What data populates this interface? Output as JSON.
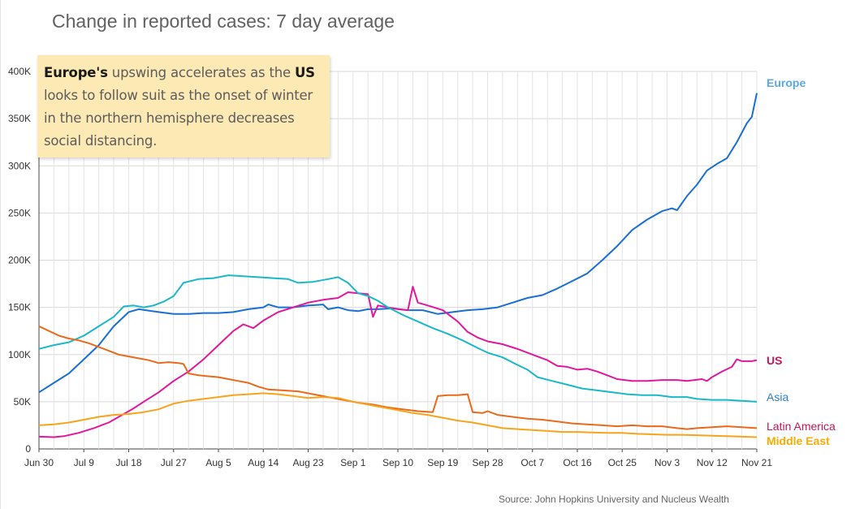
{
  "title": "Change in reported cases: 7 day average",
  "annotation": {
    "bold1": "Europe's",
    "text1": " upswing accelerates as the ",
    "bold2": "US",
    "text2": " looks to follow suit as the onset of winter in the northern hemisphere decreases social distancing."
  },
  "source": "Source: John Hopkins University and Nucleus Wealth",
  "chart_data": {
    "type": "line",
    "title": "Change in reported cases: 7 day average",
    "xlabel": "",
    "ylabel": "",
    "x_ticks": [
      "Jun 30",
      "Jul 9",
      "Jul 18",
      "Jul 27",
      "Aug 5",
      "Aug 14",
      "Aug 23",
      "Sep 1",
      "Sep 10",
      "Sep 19",
      "Sep 28",
      "Oct 7",
      "Oct 16",
      "Oct 25",
      "Nov 3",
      "Nov 12",
      "Nov 21"
    ],
    "y_ticks": [
      "0",
      "50K",
      "100K",
      "150K",
      "200K",
      "250K",
      "300K",
      "350K",
      "400K"
    ],
    "ylim": [
      0,
      400000
    ],
    "x_range_days": [
      0,
      144
    ],
    "grid": true,
    "legend": "end-of-line labels",
    "series": [
      {
        "name": "Europe",
        "color": "#1a6fd3",
        "label_color": "#5aa9e6",
        "points": [
          [
            0,
            60000
          ],
          [
            3,
            70000
          ],
          [
            6,
            80000
          ],
          [
            9,
            95000
          ],
          [
            12,
            110000
          ],
          [
            15,
            130000
          ],
          [
            18,
            145000
          ],
          [
            20,
            148000
          ],
          [
            24,
            145000
          ],
          [
            27,
            143000
          ],
          [
            30,
            143000
          ],
          [
            33,
            144000
          ],
          [
            36,
            144000
          ],
          [
            39,
            145000
          ],
          [
            42,
            148000
          ],
          [
            45,
            150000
          ],
          [
            46,
            153000
          ],
          [
            48,
            150000
          ],
          [
            51,
            150000
          ],
          [
            54,
            152000
          ],
          [
            57,
            153000
          ],
          [
            58,
            148000
          ],
          [
            60,
            150000
          ],
          [
            62,
            147000
          ],
          [
            64,
            146000
          ],
          [
            66,
            148000
          ],
          [
            68,
            148000
          ],
          [
            71,
            149000
          ],
          [
            74,
            147000
          ],
          [
            77,
            147000
          ],
          [
            80,
            143000
          ],
          [
            83,
            145000
          ],
          [
            86,
            147000
          ],
          [
            89,
            148000
          ],
          [
            92,
            150000
          ],
          [
            95,
            155000
          ],
          [
            98,
            160000
          ],
          [
            101,
            163000
          ],
          [
            104,
            170000
          ],
          [
            107,
            178000
          ],
          [
            110,
            186000
          ],
          [
            113,
            200000
          ],
          [
            116,
            215000
          ],
          [
            119,
            232000
          ],
          [
            122,
            243000
          ],
          [
            125,
            252000
          ],
          [
            127,
            255000
          ],
          [
            128,
            253000
          ],
          [
            130,
            268000
          ],
          [
            132,
            280000
          ],
          [
            134,
            295000
          ],
          [
            136,
            302000
          ],
          [
            138,
            308000
          ],
          [
            140,
            325000
          ],
          [
            142,
            345000
          ],
          [
            143,
            352000
          ],
          [
            144,
            377000
          ]
        ]
      },
      {
        "name": "US",
        "color": "#e0189c",
        "label_color": "#c2185b",
        "points": [
          [
            0,
            13000
          ],
          [
            3,
            12500
          ],
          [
            5,
            13500
          ],
          [
            8,
            17000
          ],
          [
            11,
            22000
          ],
          [
            14,
            28000
          ],
          [
            17,
            37000
          ],
          [
            19,
            43000
          ],
          [
            21,
            50000
          ],
          [
            24,
            60000
          ],
          [
            27,
            72000
          ],
          [
            30,
            82000
          ],
          [
            33,
            95000
          ],
          [
            36,
            110000
          ],
          [
            39,
            125000
          ],
          [
            41,
            132000
          ],
          [
            43,
            128000
          ],
          [
            45,
            136000
          ],
          [
            48,
            145000
          ],
          [
            51,
            150000
          ],
          [
            54,
            155000
          ],
          [
            57,
            158000
          ],
          [
            60,
            160000
          ],
          [
            62,
            166000
          ],
          [
            64,
            165000
          ],
          [
            66,
            164000
          ],
          [
            67,
            140000
          ],
          [
            68,
            152000
          ],
          [
            70,
            150000
          ],
          [
            72,
            148000
          ],
          [
            74,
            147000
          ],
          [
            75,
            172000
          ],
          [
            76,
            155000
          ],
          [
            78,
            152000
          ],
          [
            81,
            147000
          ],
          [
            84,
            135000
          ],
          [
            86,
            124000
          ],
          [
            88,
            118000
          ],
          [
            90,
            114000
          ],
          [
            93,
            111000
          ],
          [
            96,
            106000
          ],
          [
            99,
            100000
          ],
          [
            102,
            94000
          ],
          [
            104,
            88000
          ],
          [
            106,
            87000
          ],
          [
            108,
            84000
          ],
          [
            110,
            85000
          ],
          [
            112,
            82000
          ],
          [
            114,
            78000
          ],
          [
            116,
            74000
          ],
          [
            119,
            72000
          ],
          [
            122,
            72000
          ],
          [
            125,
            73000
          ],
          [
            128,
            73000
          ],
          [
            130,
            72000
          ],
          [
            133,
            74000
          ],
          [
            134,
            72000
          ],
          [
            135,
            76000
          ],
          [
            137,
            82000
          ],
          [
            139,
            87000
          ],
          [
            140,
            95000
          ],
          [
            141,
            93000
          ],
          [
            143,
            93000
          ],
          [
            144,
            94000
          ]
        ]
      },
      {
        "name": "Asia",
        "color": "#1bb8c8",
        "label_color": "#2e7fc4",
        "points": [
          [
            0,
            106000
          ],
          [
            3,
            110000
          ],
          [
            6,
            113000
          ],
          [
            9,
            120000
          ],
          [
            12,
            130000
          ],
          [
            15,
            140000
          ],
          [
            17,
            151000
          ],
          [
            19,
            152000
          ],
          [
            21,
            150000
          ],
          [
            23,
            152000
          ],
          [
            25,
            156000
          ],
          [
            27,
            162000
          ],
          [
            29,
            176000
          ],
          [
            32,
            180000
          ],
          [
            35,
            181000
          ],
          [
            38,
            184000
          ],
          [
            41,
            183000
          ],
          [
            44,
            182000
          ],
          [
            47,
            181000
          ],
          [
            50,
            180000
          ],
          [
            52,
            176000
          ],
          [
            55,
            177000
          ],
          [
            58,
            180000
          ],
          [
            60,
            182000
          ],
          [
            62,
            176000
          ],
          [
            64,
            165000
          ],
          [
            66,
            162000
          ],
          [
            68,
            157000
          ],
          [
            70,
            150000
          ],
          [
            73,
            142000
          ],
          [
            76,
            135000
          ],
          [
            79,
            128000
          ],
          [
            82,
            122000
          ],
          [
            85,
            115000
          ],
          [
            88,
            107000
          ],
          [
            90,
            102000
          ],
          [
            93,
            97000
          ],
          [
            96,
            89000
          ],
          [
            98,
            84000
          ],
          [
            100,
            76000
          ],
          [
            103,
            72000
          ],
          [
            106,
            68000
          ],
          [
            109,
            64000
          ],
          [
            112,
            62000
          ],
          [
            115,
            60000
          ],
          [
            118,
            58000
          ],
          [
            121,
            57000
          ],
          [
            124,
            57000
          ],
          [
            127,
            55000
          ],
          [
            130,
            55000
          ],
          [
            132,
            53000
          ],
          [
            135,
            52000
          ],
          [
            138,
            52000
          ],
          [
            141,
            51000
          ],
          [
            144,
            50000
          ]
        ]
      },
      {
        "name": "Latin America",
        "color": "#e86a1a",
        "label_color": "#c2185b",
        "points": [
          [
            0,
            130000
          ],
          [
            2,
            125000
          ],
          [
            4,
            120000
          ],
          [
            6,
            117000
          ],
          [
            8,
            115000
          ],
          [
            10,
            112000
          ],
          [
            12,
            108000
          ],
          [
            14,
            104000
          ],
          [
            16,
            100000
          ],
          [
            18,
            98000
          ],
          [
            20,
            96000
          ],
          [
            22,
            94000
          ],
          [
            24,
            91000
          ],
          [
            26,
            92000
          ],
          [
            28,
            91000
          ],
          [
            29,
            90000
          ],
          [
            30,
            80000
          ],
          [
            32,
            78000
          ],
          [
            34,
            77000
          ],
          [
            36,
            76000
          ],
          [
            38,
            74000
          ],
          [
            40,
            72000
          ],
          [
            42,
            70000
          ],
          [
            44,
            66000
          ],
          [
            46,
            63000
          ],
          [
            49,
            62000
          ],
          [
            52,
            61000
          ],
          [
            55,
            58000
          ],
          [
            58,
            55000
          ],
          [
            61,
            52000
          ],
          [
            64,
            49000
          ],
          [
            67,
            47000
          ],
          [
            70,
            44000
          ],
          [
            73,
            42000
          ],
          [
            76,
            40000
          ],
          [
            79,
            39000
          ],
          [
            80,
            56000
          ],
          [
            82,
            57000
          ],
          [
            84,
            57000
          ],
          [
            86,
            58000
          ],
          [
            87,
            39000
          ],
          [
            89,
            38000
          ],
          [
            90,
            40000
          ],
          [
            92,
            36000
          ],
          [
            95,
            34000
          ],
          [
            98,
            32000
          ],
          [
            101,
            31000
          ],
          [
            104,
            29000
          ],
          [
            107,
            27000
          ],
          [
            110,
            26000
          ],
          [
            113,
            25000
          ],
          [
            116,
            24000
          ],
          [
            119,
            25000
          ],
          [
            122,
            24000
          ],
          [
            125,
            24000
          ],
          [
            128,
            22000
          ],
          [
            130,
            21000
          ],
          [
            132,
            22000
          ],
          [
            135,
            23000
          ],
          [
            138,
            24000
          ],
          [
            141,
            23000
          ],
          [
            144,
            22000
          ]
        ]
      },
      {
        "name": "Middle East",
        "color": "#f7a41d",
        "label_color": "#f9ab00",
        "points": [
          [
            0,
            25000
          ],
          [
            3,
            26000
          ],
          [
            6,
            28000
          ],
          [
            9,
            31000
          ],
          [
            12,
            34000
          ],
          [
            15,
            36000
          ],
          [
            18,
            37000
          ],
          [
            21,
            39000
          ],
          [
            24,
            42000
          ],
          [
            27,
            48000
          ],
          [
            30,
            51000
          ],
          [
            33,
            53000
          ],
          [
            36,
            55000
          ],
          [
            39,
            57000
          ],
          [
            42,
            58000
          ],
          [
            45,
            59000
          ],
          [
            48,
            58000
          ],
          [
            51,
            56000
          ],
          [
            54,
            54000
          ],
          [
            57,
            55000
          ],
          [
            60,
            54000
          ],
          [
            63,
            50000
          ],
          [
            66,
            47000
          ],
          [
            69,
            44000
          ],
          [
            72,
            41000
          ],
          [
            75,
            38000
          ],
          [
            78,
            36000
          ],
          [
            81,
            33000
          ],
          [
            84,
            30000
          ],
          [
            87,
            28000
          ],
          [
            90,
            25000
          ],
          [
            93,
            22000
          ],
          [
            96,
            21000
          ],
          [
            99,
            20000
          ],
          [
            102,
            19000
          ],
          [
            105,
            18000
          ],
          [
            108,
            18000
          ],
          [
            111,
            17500
          ],
          [
            114,
            17000
          ],
          [
            117,
            17000
          ],
          [
            120,
            16000
          ],
          [
            123,
            15500
          ],
          [
            126,
            15000
          ],
          [
            129,
            15000
          ],
          [
            132,
            14500
          ],
          [
            135,
            14000
          ],
          [
            138,
            13500
          ],
          [
            141,
            13000
          ],
          [
            144,
            12500
          ]
        ]
      }
    ]
  }
}
